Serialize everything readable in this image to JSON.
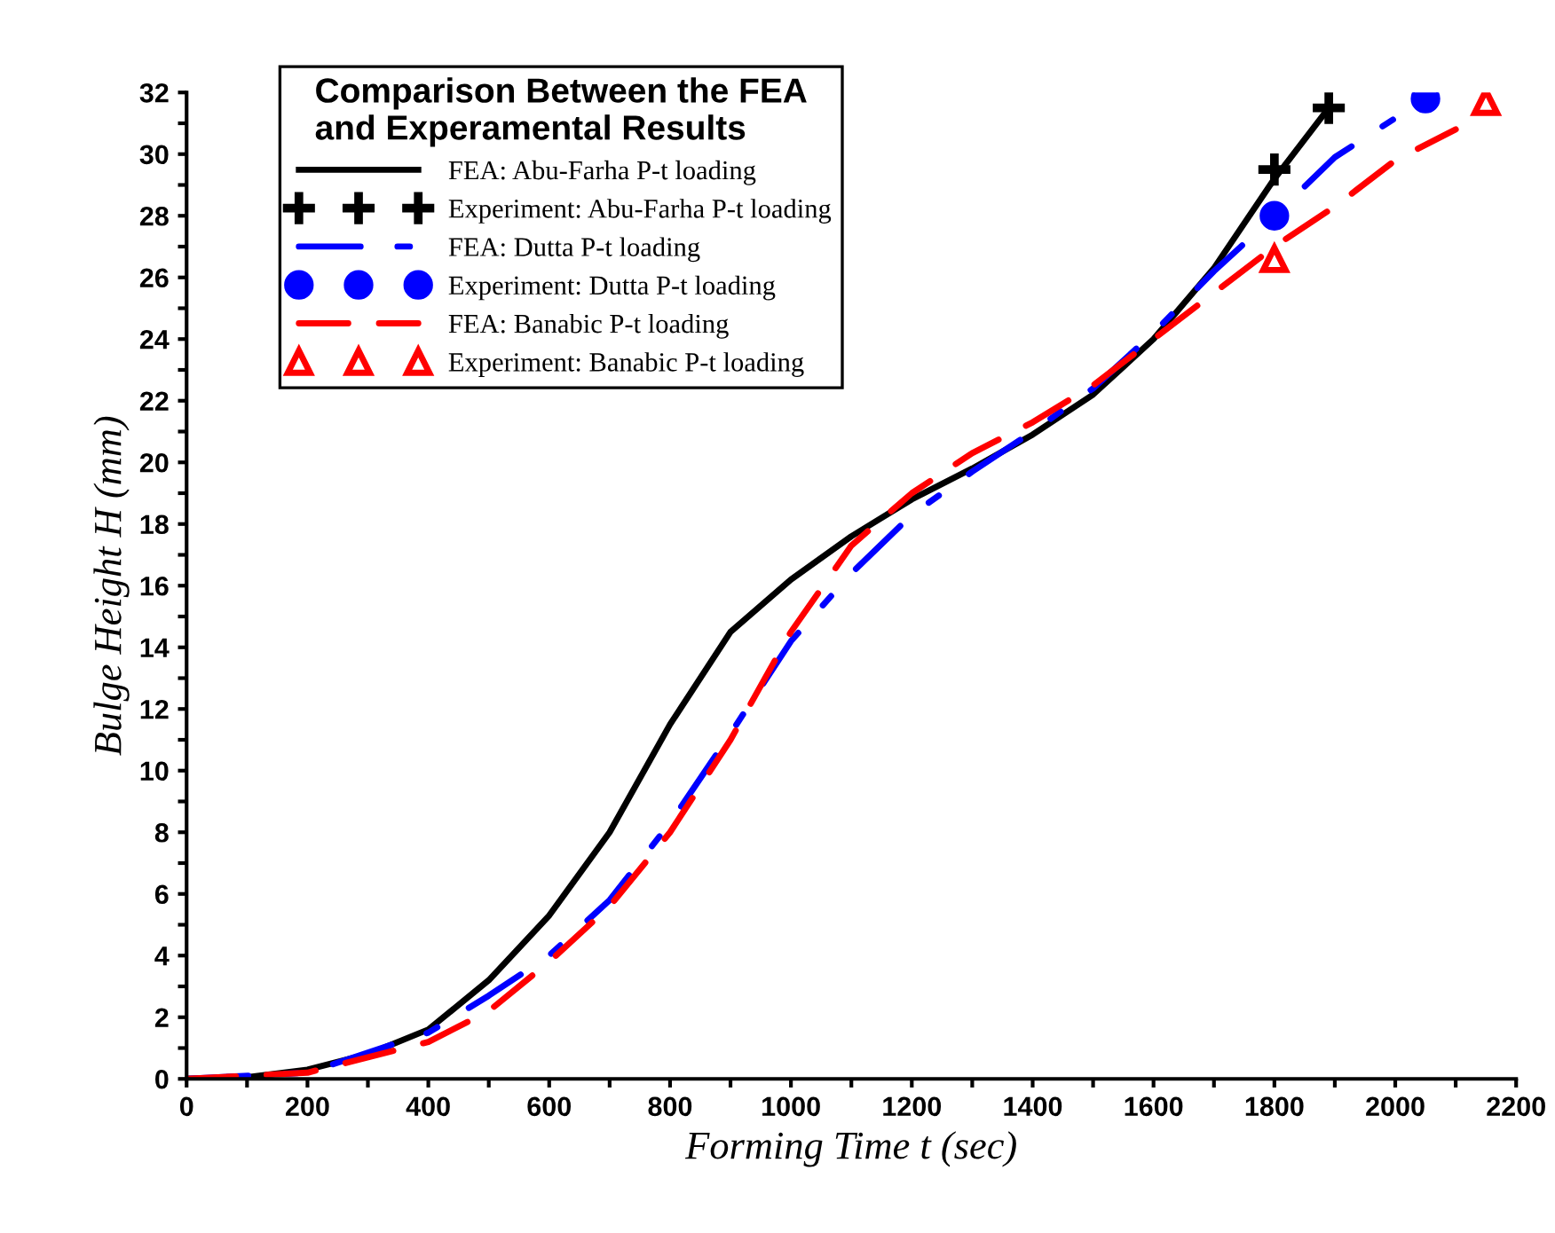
{
  "chart_data": {
    "type": "line",
    "legend_title": "Comparison Between the FEA\nand Experamental Results",
    "xlabel": "Forming Time t (sec)",
    "ylabel": "Bulge Height H (mm)",
    "xlim": [
      0,
      2200
    ],
    "ylim": [
      0,
      32
    ],
    "xticks": [
      0,
      {
        "value": 100,
        "label": null
      },
      200,
      {
        "value": 300,
        "label": null
      },
      400,
      {
        "value": 500,
        "label": null
      },
      600,
      {
        "value": 700,
        "label": null
      },
      800,
      {
        "value": 900,
        "label": null
      },
      1000,
      {
        "value": 1100,
        "label": null
      },
      1200,
      {
        "value": 1300,
        "label": null
      },
      1400,
      {
        "value": 1500,
        "label": null
      },
      1600,
      {
        "value": 1700,
        "label": null
      },
      1800,
      {
        "value": 1900,
        "label": null
      },
      2000,
      {
        "value": 2100,
        "label": null
      },
      2200
    ],
    "yticks": [
      0,
      {
        "value": 1,
        "label": null
      },
      2,
      {
        "value": 3,
        "label": null
      },
      4,
      {
        "value": 5,
        "label": null
      },
      6,
      {
        "value": 7,
        "label": null
      },
      8,
      {
        "value": 9,
        "label": null
      },
      10,
      {
        "value": 11,
        "label": null
      },
      12,
      {
        "value": 13,
        "label": null
      },
      14,
      {
        "value": 15,
        "label": null
      },
      16,
      {
        "value": 17,
        "label": null
      },
      18,
      {
        "value": 19,
        "label": null
      },
      20,
      {
        "value": 21,
        "label": null
      },
      22,
      {
        "value": 23,
        "label": null
      },
      24,
      {
        "value": 25,
        "label": null
      },
      26,
      {
        "value": 27,
        "label": null
      },
      28,
      {
        "value": 29,
        "label": null
      },
      30,
      {
        "value": 31,
        "label": null
      },
      32
    ],
    "grid": false,
    "legend": "top left",
    "series": [
      {
        "name": "FEA: Abu-Farha P-t loading",
        "color": "#000000",
        "line_style": "solid",
        "marker": "none",
        "x": [
          0,
          100,
          200,
          300,
          400,
          500,
          600,
          700,
          800,
          900,
          1000,
          1100,
          1200,
          1300,
          1400,
          1500,
          1600,
          1700,
          1800,
          1890
        ],
        "values": [
          0,
          0.05,
          0.3,
          0.8,
          1.6,
          3.2,
          5.3,
          8,
          11.5,
          14.5,
          16.2,
          17.6,
          18.8,
          19.8,
          20.9,
          22.2,
          24,
          26.3,
          29.2,
          31.5
        ]
      },
      {
        "name": "Experiment: Abu-Farha P-t loading",
        "type": "scatter",
        "color": "#000000",
        "marker": "cross",
        "x": [
          1800,
          1890
        ],
        "values": [
          29.5,
          31.5
        ]
      },
      {
        "name": "FEA: Dutta P-t loading",
        "color": "#0000ff",
        "line_style": "dashdot",
        "marker": "none",
        "x": [
          0,
          200,
          400,
          500,
          600,
          700,
          800,
          900,
          1000,
          1100,
          1200,
          1300,
          1400,
          1500,
          1600,
          1700,
          1800,
          1900,
          2050
        ],
        "values": [
          0,
          0.2,
          1.5,
          2.7,
          4,
          5.8,
          8.3,
          11.2,
          14.2,
          16.4,
          18.3,
          19.7,
          21,
          22.4,
          24.2,
          26.2,
          28,
          29.9,
          31.8
        ]
      },
      {
        "name": "Experiment: Dutta P-t loading",
        "type": "scatter",
        "color": "#0000ff",
        "marker": "circle",
        "x": [
          1800,
          2050
        ],
        "values": [
          28,
          31.8
        ]
      },
      {
        "name": "FEA: Banabic P-t loading",
        "color": "#ff0000",
        "line_style": "dashed",
        "marker": "none",
        "x": [
          0,
          200,
          400,
          500,
          600,
          700,
          800,
          900,
          1000,
          1100,
          1200,
          1300,
          1400,
          1500,
          1600,
          1700,
          1800,
          1900,
          2000,
          2100
        ],
        "values": [
          0,
          0.2,
          1.2,
          2.2,
          3.8,
          5.6,
          8,
          11,
          14.5,
          17.3,
          19,
          20.3,
          21.3,
          22.5,
          24,
          25.5,
          27,
          28.3,
          29.8,
          30.8
        ]
      },
      {
        "name": "Experiment: Banabic P-t loading",
        "type": "scatter",
        "color": "#ff0000",
        "marker": "triangle",
        "x": [
          1800,
          2150
        ],
        "values": [
          26.6,
          31.7
        ]
      }
    ]
  }
}
